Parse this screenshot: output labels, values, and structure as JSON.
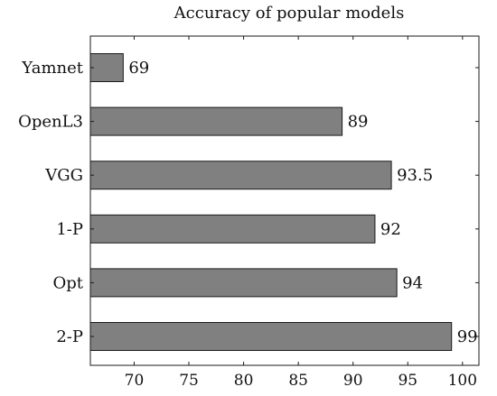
{
  "chart_data": {
    "type": "bar",
    "orientation": "horizontal",
    "title": "Accuracy of popular models",
    "categories": [
      "Yamnet",
      "OpenL3",
      "VGG",
      "1-P",
      "Opt",
      "2-P"
    ],
    "values": [
      69,
      89,
      93.5,
      92,
      94,
      99
    ],
    "value_labels": [
      "69",
      "89",
      "93.5",
      "92",
      "94",
      "99"
    ],
    "xlabel": "",
    "ylabel": "",
    "xlim": [
      66,
      101.5
    ],
    "xticks": [
      70,
      75,
      80,
      85,
      90,
      95,
      100
    ],
    "grid": false,
    "legend": "none",
    "colors": {
      "bar_fill": "#808080",
      "bar_stroke": "#1a1a1a",
      "axis": "#1a1a1a"
    }
  }
}
